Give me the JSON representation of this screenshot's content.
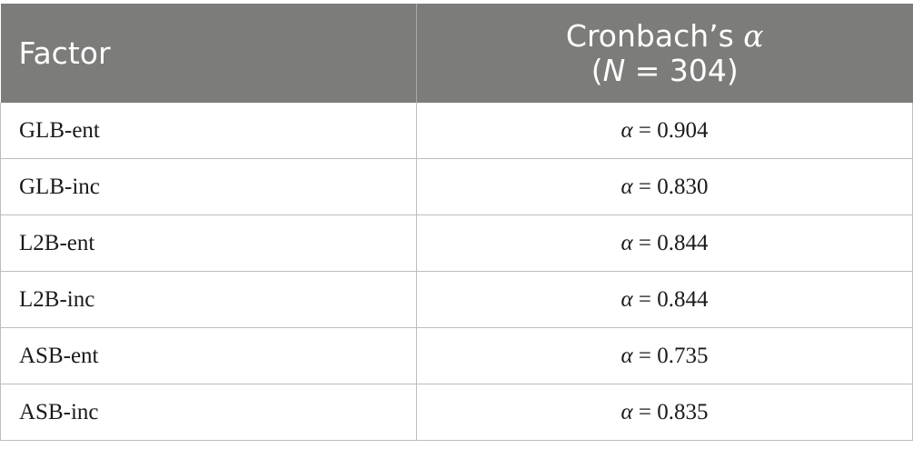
{
  "table": {
    "header": {
      "factor": "Factor",
      "alpha_line1_text": "Cronbach’s ",
      "alpha_symbol": "α",
      "alpha_line2_open": "(",
      "alpha_line2_n": "N",
      "alpha_line2_rest": " = 304)"
    },
    "rows": [
      {
        "factor": "GLB-ent",
        "alpha_symbol": "α",
        "alpha_value": " = 0.904"
      },
      {
        "factor": "GLB-inc",
        "alpha_symbol": "α",
        "alpha_value": " = 0.830"
      },
      {
        "factor": "L2B-ent",
        "alpha_symbol": "α",
        "alpha_value": " = 0.844"
      },
      {
        "factor": "L2B-inc",
        "alpha_symbol": "α",
        "alpha_value": " = 0.844"
      },
      {
        "factor": "ASB-ent",
        "alpha_symbol": "α",
        "alpha_value": " = 0.735"
      },
      {
        "factor": "ASB-inc",
        "alpha_symbol": "α",
        "alpha_value": " = 0.835"
      }
    ],
    "colors": {
      "header_bg": "#7c7d7a",
      "header_text": "#ffffff",
      "border": "#bdbdbd"
    }
  }
}
